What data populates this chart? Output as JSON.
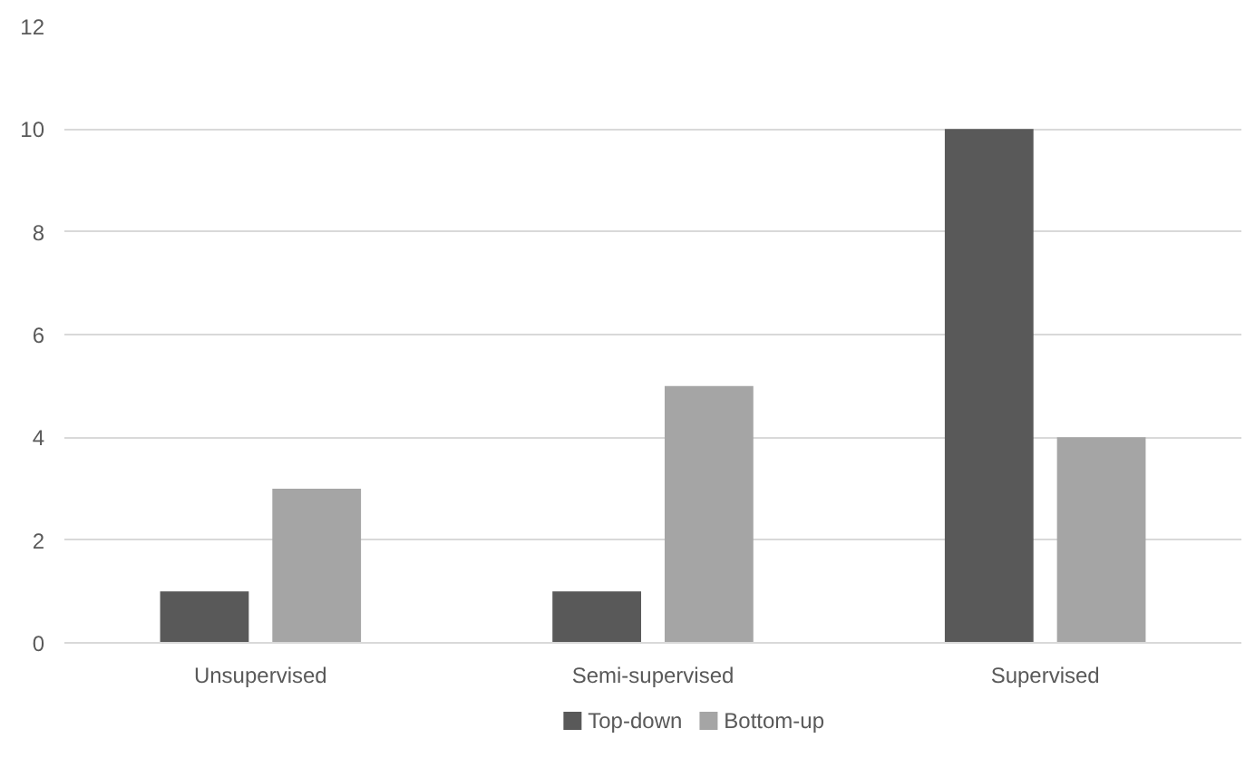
{
  "chart_data": {
    "type": "bar",
    "categories": [
      "Unsupervised",
      "Semi-supervised",
      "Supervised"
    ],
    "series": [
      {
        "name": "Top-down",
        "color": "#595959",
        "values": [
          1,
          1,
          10
        ]
      },
      {
        "name": "Bottom-up",
        "color": "#a5a5a5",
        "values": [
          3,
          5,
          4
        ]
      }
    ],
    "ylim": [
      0,
      12
    ],
    "yticks": [
      0,
      2,
      4,
      6,
      8,
      10,
      12
    ],
    "grid": "y",
    "legend": "bottom"
  }
}
